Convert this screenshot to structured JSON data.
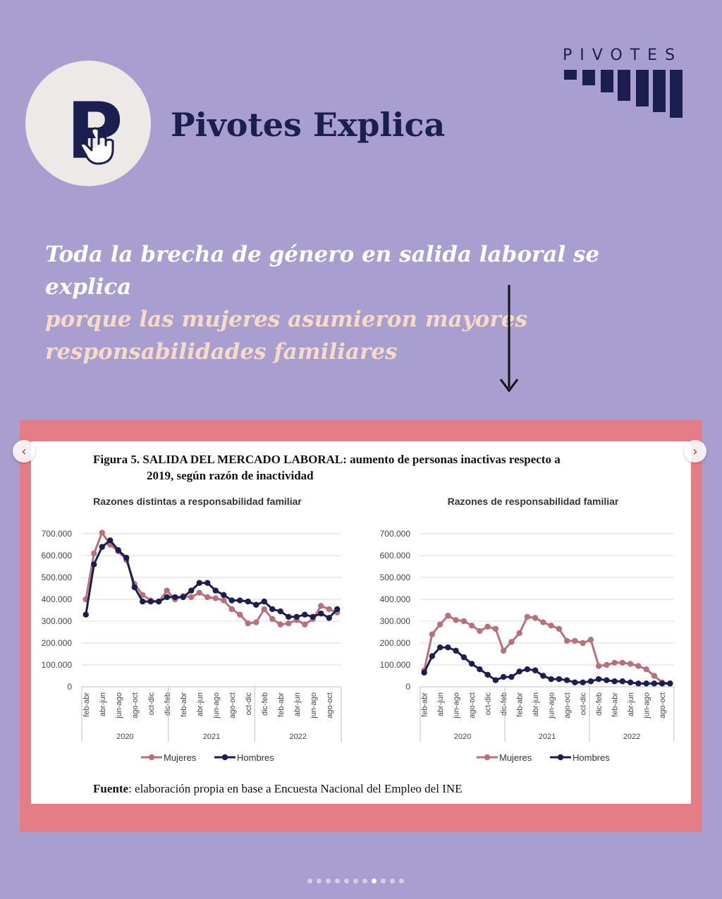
{
  "brand": {
    "title": "Pivotes Explica",
    "logo_word": "PIVOTES",
    "logo_letter": "P"
  },
  "headline": {
    "line1": "Toda la brecha de género en salida laboral se explica",
    "line2": "porque las mujeres asumieron mayores",
    "line3": "responsabilidades familiares"
  },
  "figure": {
    "title_bold": "Figura 5.",
    "title_rest": "SALIDA DEL MERCADO LABORAL: aumento de personas inactivas respecto a",
    "title_line2": "2019, según razón de inactividad",
    "source_label": "Fuente",
    "source_text": ": elaboración propia en base a Encuesta Nacional del Empleo del INE"
  },
  "colors": {
    "mujeres": "#b8707a",
    "hombres": "#1b1f4f",
    "frame": "#e57d87",
    "background": "#a89ecf"
  },
  "carousel": {
    "count": 11,
    "active": 7,
    "prev_icon": "chevron-left-icon",
    "next_icon": "chevron-right-icon"
  },
  "chart_data": [
    {
      "type": "line",
      "title": "Razones distintas a responsabilidad familiar",
      "ylim": [
        0,
        700000
      ],
      "yticks": [
        "0",
        "100.000",
        "200.000",
        "300.000",
        "400.000",
        "500.000",
        "600.000",
        "700.000"
      ],
      "xtick_labels": [
        "feb-abr",
        "abr-jun",
        "jun-ago",
        "ago-oct",
        "oct-dic",
        "dic-feb",
        "feb-abr",
        "abr-jun",
        "jun-ago",
        "ago-oct",
        "oct-dic",
        "dic-feb",
        "feb-abr",
        "abr-jun",
        "jun-ago",
        "ago-oct"
      ],
      "years": [
        "2020",
        "2021",
        "2022"
      ],
      "legend_position": "bottom",
      "series": [
        {
          "name": "Mujeres",
          "values": [
            400000,
            610000,
            705000,
            650000,
            620000,
            580000,
            470000,
            420000,
            395000,
            390000,
            440000,
            400000,
            415000,
            410000,
            430000,
            410000,
            405000,
            395000,
            355000,
            330000,
            290000,
            295000,
            355000,
            310000,
            285000,
            290000,
            305000,
            285000,
            310000,
            370000,
            355000,
            340000
          ]
        },
        {
          "name": "Hombres",
          "values": [
            330000,
            560000,
            640000,
            670000,
            625000,
            590000,
            455000,
            390000,
            390000,
            390000,
            410000,
            410000,
            410000,
            440000,
            475000,
            475000,
            440000,
            420000,
            395000,
            395000,
            390000,
            375000,
            390000,
            355000,
            345000,
            320000,
            320000,
            330000,
            320000,
            335000,
            315000,
            355000
          ]
        }
      ]
    },
    {
      "type": "line",
      "title": "Razones de responsabilidad familiar",
      "ylim": [
        0,
        700000
      ],
      "yticks": [
        "0",
        "100.000",
        "200.000",
        "300.000",
        "400.000",
        "500.000",
        "600.000",
        "700.000"
      ],
      "xtick_labels": [
        "feb-abr",
        "abr-jun",
        "jun-ago",
        "ago-oct",
        "oct-dic",
        "dic-feb",
        "feb-abr",
        "abr-jun",
        "jun-ago",
        "ago-oct",
        "oct-dic",
        "dic-feb",
        "feb-abr",
        "abr-jun",
        "jun-ago",
        "ago-oct"
      ],
      "years": [
        "2020",
        "2021",
        "2022"
      ],
      "legend_position": "bottom",
      "series": [
        {
          "name": "Mujeres",
          "values": [
            75000,
            240000,
            285000,
            325000,
            305000,
            300000,
            280000,
            255000,
            275000,
            265000,
            165000,
            205000,
            245000,
            320000,
            315000,
            295000,
            280000,
            265000,
            210000,
            210000,
            200000,
            215000,
            95000,
            100000,
            110000,
            110000,
            105000,
            95000,
            80000,
            50000,
            20000,
            15000
          ]
        },
        {
          "name": "Hombres",
          "values": [
            65000,
            140000,
            180000,
            180000,
            165000,
            135000,
            105000,
            80000,
            55000,
            30000,
            45000,
            45000,
            70000,
            80000,
            75000,
            50000,
            35000,
            35000,
            30000,
            20000,
            20000,
            25000,
            35000,
            30000,
            25000,
            25000,
            20000,
            15000,
            15000,
            15000,
            15000,
            15000
          ]
        }
      ]
    }
  ]
}
